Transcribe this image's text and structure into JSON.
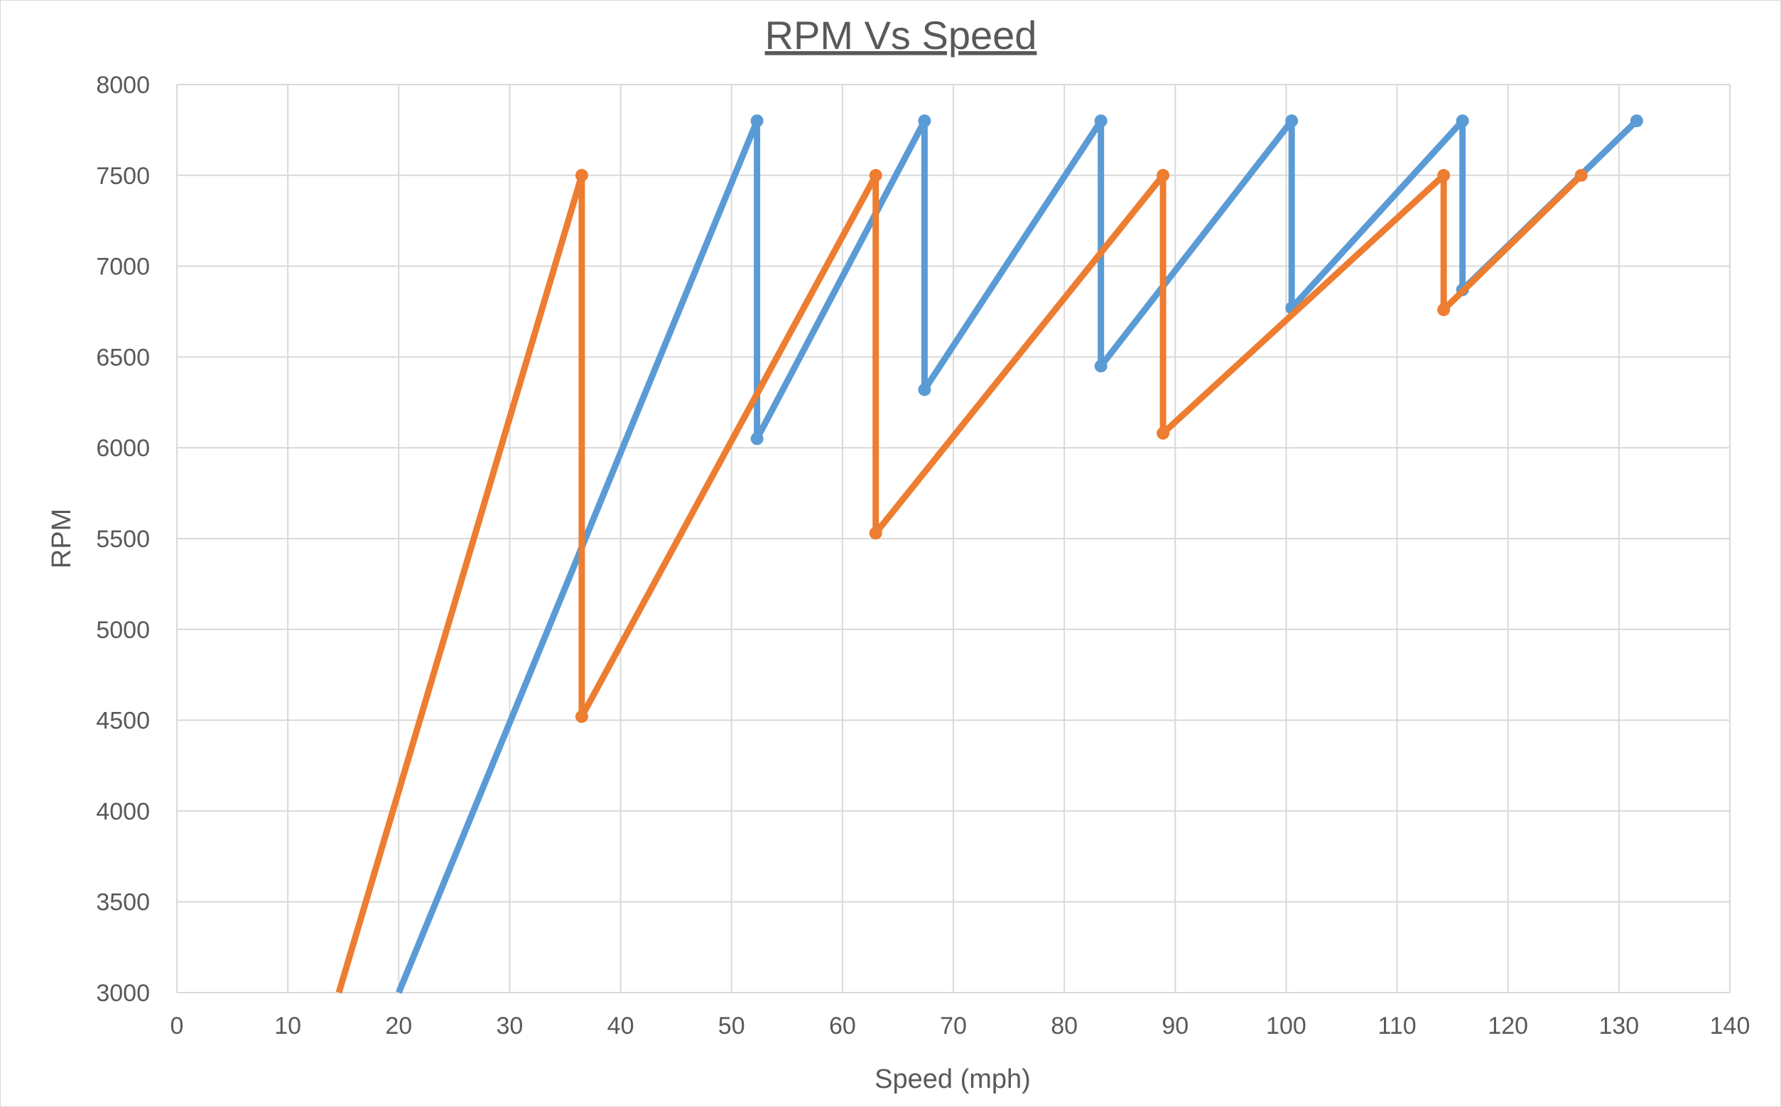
{
  "chart_data": {
    "type": "line",
    "title": "RPM Vs Speed",
    "xlabel": "Speed (mph)",
    "ylabel": "RPM",
    "xlim": [
      0,
      140
    ],
    "ylim": [
      3000,
      8000
    ],
    "x_ticks": [
      0,
      10,
      20,
      30,
      40,
      50,
      60,
      70,
      80,
      90,
      100,
      110,
      120,
      130,
      140
    ],
    "y_ticks": [
      3000,
      3500,
      4000,
      4500,
      5000,
      5500,
      6000,
      6500,
      7000,
      7500,
      8000
    ],
    "grid": true,
    "legend": "none",
    "series": [
      {
        "color": "#5b9bd5",
        "points": [
          [
            20.0,
            3000
          ],
          [
            52.3,
            7800
          ],
          [
            52.3,
            6050
          ],
          [
            67.4,
            7800
          ],
          [
            67.4,
            6320
          ],
          [
            83.3,
            7800
          ],
          [
            83.3,
            6450
          ],
          [
            100.5,
            7800
          ],
          [
            100.5,
            6770
          ],
          [
            115.9,
            7800
          ],
          [
            115.9,
            6870
          ],
          [
            131.6,
            7800
          ]
        ],
        "markers": [
          [
            52.3,
            7800
          ],
          [
            52.3,
            6050
          ],
          [
            67.4,
            7800
          ],
          [
            67.4,
            6320
          ],
          [
            83.3,
            7800
          ],
          [
            83.3,
            6450
          ],
          [
            100.5,
            7800
          ],
          [
            100.5,
            6770
          ],
          [
            115.9,
            7800
          ],
          [
            115.9,
            6870
          ],
          [
            131.6,
            7800
          ]
        ]
      },
      {
        "color": "#ed7d31",
        "points": [
          [
            14.6,
            3000
          ],
          [
            36.5,
            7500
          ],
          [
            36.5,
            4520
          ],
          [
            63.0,
            7500
          ],
          [
            63.0,
            5530
          ],
          [
            88.9,
            7500
          ],
          [
            88.9,
            6080
          ],
          [
            114.2,
            7500
          ],
          [
            114.2,
            6760
          ],
          [
            126.6,
            7500
          ]
        ],
        "markers": [
          [
            36.5,
            7500
          ],
          [
            36.5,
            4520
          ],
          [
            63.0,
            7500
          ],
          [
            63.0,
            5530
          ],
          [
            88.9,
            7500
          ],
          [
            88.9,
            6080
          ],
          [
            114.2,
            7500
          ],
          [
            114.2,
            6760
          ],
          [
            126.6,
            7500
          ]
        ]
      }
    ]
  }
}
